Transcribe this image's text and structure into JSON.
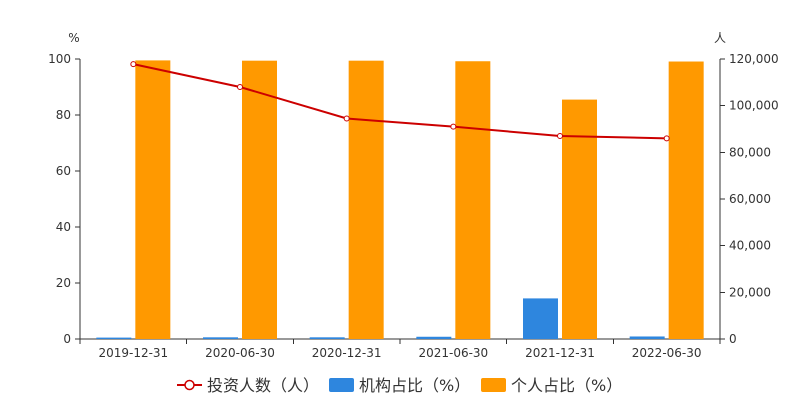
{
  "chart_data": {
    "type": "bar",
    "categories": [
      "2019-12-31",
      "2020-06-30",
      "2020-12-31",
      "2021-06-30",
      "2021-12-31",
      "2022-06-30"
    ],
    "left_axis": {
      "unit": "%",
      "ylim": [
        0,
        100
      ],
      "ticks": [
        "0",
        "20",
        "40",
        "60",
        "80",
        "100"
      ]
    },
    "right_axis": {
      "unit": "人",
      "ylim": [
        0,
        120000
      ],
      "ticks": [
        "0",
        "20,000",
        "40,000",
        "60,000",
        "80,000",
        "100,000",
        "120,000"
      ]
    },
    "series": [
      {
        "name": "投资人数（人）",
        "type": "line",
        "axis": "right",
        "color": "#cc0000",
        "values": [
          117800,
          108000,
          94500,
          91000,
          87000,
          86000
        ]
      },
      {
        "name": "机构占比（%）",
        "type": "bar",
        "axis": "left",
        "color": "#2e86de",
        "values": [
          0.5,
          0.6,
          0.6,
          0.8,
          14.5,
          0.9
        ]
      },
      {
        "name": "个人占比（%）",
        "type": "bar",
        "axis": "left",
        "color": "#ff9900",
        "values": [
          99.5,
          99.4,
          99.4,
          99.2,
          85.5,
          99.1
        ]
      }
    ],
    "grid": false,
    "legend_position": "bottom"
  }
}
